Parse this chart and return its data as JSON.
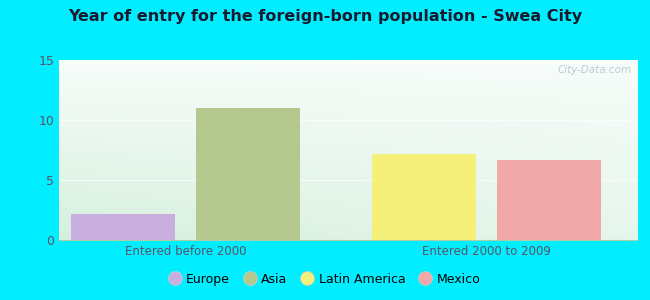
{
  "title": "Year of entry for the foreign-born population - Swea City",
  "groups": [
    "Entered before 2000",
    "Entered 2000 to 2009"
  ],
  "series": {
    "Europe": {
      "value": 2.2,
      "color": "#c9aee0"
    },
    "Asia": {
      "value": 11.0,
      "color": "#b5c98e"
    },
    "Latin America": {
      "value": 7.2,
      "color": "#f5f07a"
    },
    "Mexico": {
      "value": 6.7,
      "color": "#f0a8a8"
    }
  },
  "ylim": [
    0,
    15
  ],
  "yticks": [
    0,
    5,
    10,
    15
  ],
  "background_outer": "#00eeff",
  "background_inner_topleft": "#d8f0dc",
  "background_inner_botright": "#ffffff",
  "bar_width": 0.18,
  "watermark": "City-Data.com",
  "legend_order": [
    "Europe",
    "Asia",
    "Latin America",
    "Mexico"
  ],
  "title_color": "#1a1a2e",
  "tick_color": "#555566"
}
